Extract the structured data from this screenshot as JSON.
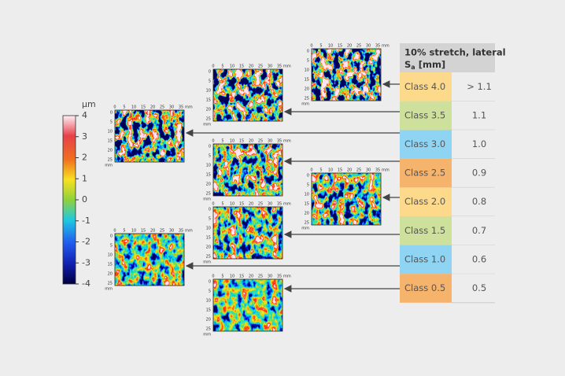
{
  "colorbar": {
    "unit": "µm",
    "ticks": [
      "4",
      "3",
      "2",
      "1",
      "0",
      "-1",
      "-2",
      "-3",
      "-4"
    ]
  },
  "map_axis": {
    "x_ticks": [
      "0",
      "5",
      "10",
      "15",
      "20",
      "25",
      "30",
      "35"
    ],
    "x_unit": "mm",
    "y_ticks": [
      "0",
      "5",
      "10",
      "15",
      "20",
      "25"
    ],
    "y_unit": "mm"
  },
  "table": {
    "header": {
      "line1": "10% stretch, lateral",
      "symbol": "S",
      "subscript": "a",
      "unit": "[mm]"
    },
    "rows": [
      [
        "Class 4.0",
        "> 1.1"
      ],
      [
        "Class 3.5",
        "1.1"
      ],
      [
        "Class 3.0",
        "1.0"
      ],
      [
        "Class 2.5",
        "0.9"
      ],
      [
        "Class 2.0",
        "0.8"
      ],
      [
        "Class 1.5",
        "0.7"
      ],
      [
        "Class 1.0",
        "0.6"
      ],
      [
        "Class 0.5",
        "0.5"
      ]
    ]
  }
}
